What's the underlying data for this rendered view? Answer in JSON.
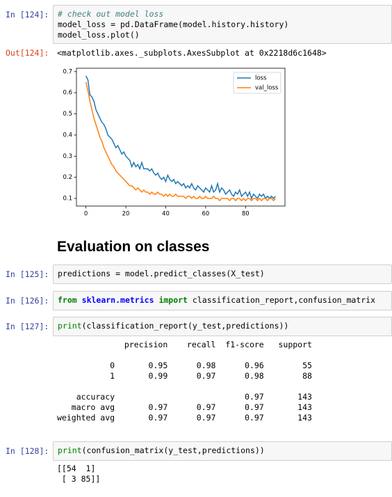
{
  "cells": [
    {
      "prompt": "In [124]:",
      "input": [
        [
          "# check out model loss"
        ],
        [
          "model_loss = pd.DataFrame(model.history.history)"
        ],
        [
          "model_loss.plot()"
        ]
      ],
      "out_prompt": "Out[124]:",
      "output": [
        "<matplotlib.axes._subplots.AxesSubplot at 0x2218d6c1648>"
      ]
    },
    {
      "prompt": "In [125]:",
      "input": [
        [
          "predictions = model.predict_classes(X_test)"
        ]
      ]
    },
    {
      "prompt": "In [126]:",
      "input": [
        [
          "from",
          "sklearn.metrics",
          "import",
          "classification_report,confusion_matrix"
        ]
      ]
    },
    {
      "prompt": "In [127]:",
      "input": [
        [
          "print",
          "(classification_report(y_test,predictions))"
        ]
      ],
      "output": [
        "              precision    recall  f1-score   support",
        "           0       0.95      0.98      0.96        55",
        "           1       0.99      0.97      0.98        88",
        "    accuracy                           0.97       143",
        "   macro avg       0.97      0.97      0.97       143",
        "weighted avg       0.97      0.97      0.97       143"
      ]
    },
    {
      "prompt": "In [128]:",
      "input": [
        [
          "print",
          "(confusion_matrix(y_test,predictions))"
        ]
      ],
      "output": [
        "[[54  1]",
        " [ 3 85]]"
      ]
    }
  ],
  "heading": "Evaluation on classes",
  "chart_data": {
    "type": "line",
    "x": [
      0,
      1,
      2,
      3,
      4,
      5,
      6,
      7,
      8,
      9,
      10,
      11,
      12,
      13,
      14,
      15,
      16,
      17,
      18,
      19,
      20,
      21,
      22,
      23,
      24,
      25,
      26,
      27,
      28,
      29,
      30,
      31,
      32,
      33,
      34,
      35,
      36,
      37,
      38,
      39,
      40,
      41,
      42,
      43,
      44,
      45,
      46,
      47,
      48,
      49,
      50,
      51,
      52,
      53,
      54,
      55,
      56,
      57,
      58,
      59,
      60,
      61,
      62,
      63,
      64,
      65,
      66,
      67,
      68,
      69,
      70,
      71,
      72,
      73,
      74,
      75,
      76,
      77,
      78,
      79,
      80,
      81,
      82,
      83,
      84,
      85,
      86,
      87,
      88,
      89,
      90,
      91,
      92,
      93,
      94,
      95
    ],
    "series": [
      {
        "name": "loss",
        "color": "#1f77b4",
        "values": [
          0.68,
          0.66,
          0.59,
          0.58,
          0.56,
          0.52,
          0.5,
          0.48,
          0.46,
          0.45,
          0.43,
          0.4,
          0.39,
          0.38,
          0.36,
          0.34,
          0.35,
          0.33,
          0.31,
          0.32,
          0.3,
          0.29,
          0.28,
          0.25,
          0.27,
          0.25,
          0.26,
          0.24,
          0.27,
          0.24,
          0.24,
          0.24,
          0.23,
          0.24,
          0.22,
          0.21,
          0.22,
          0.2,
          0.19,
          0.2,
          0.18,
          0.21,
          0.19,
          0.18,
          0.19,
          0.17,
          0.18,
          0.17,
          0.16,
          0.17,
          0.15,
          0.16,
          0.15,
          0.17,
          0.15,
          0.14,
          0.16,
          0.15,
          0.14,
          0.13,
          0.15,
          0.14,
          0.13,
          0.16,
          0.13,
          0.14,
          0.17,
          0.13,
          0.15,
          0.14,
          0.12,
          0.13,
          0.14,
          0.12,
          0.11,
          0.13,
          0.12,
          0.14,
          0.11,
          0.12,
          0.13,
          0.11,
          0.13,
          0.1,
          0.12,
          0.11,
          0.1,
          0.12,
          0.11,
          0.12,
          0.1,
          0.11,
          0.1,
          0.11,
          0.1,
          0.11
        ]
      },
      {
        "name": "val_loss",
        "color": "#ff7f0e",
        "values": [
          0.65,
          0.61,
          0.56,
          0.52,
          0.48,
          0.45,
          0.42,
          0.39,
          0.37,
          0.34,
          0.32,
          0.3,
          0.28,
          0.26,
          0.25,
          0.23,
          0.22,
          0.21,
          0.2,
          0.19,
          0.18,
          0.17,
          0.16,
          0.16,
          0.15,
          0.14,
          0.15,
          0.14,
          0.13,
          0.14,
          0.13,
          0.13,
          0.12,
          0.13,
          0.12,
          0.12,
          0.13,
          0.12,
          0.12,
          0.11,
          0.12,
          0.11,
          0.12,
          0.11,
          0.11,
          0.12,
          0.11,
          0.11,
          0.11,
          0.11,
          0.1,
          0.11,
          0.11,
          0.1,
          0.11,
          0.1,
          0.1,
          0.11,
          0.1,
          0.1,
          0.11,
          0.1,
          0.1,
          0.1,
          0.11,
          0.1,
          0.1,
          0.09,
          0.1,
          0.1,
          0.1,
          0.1,
          0.09,
          0.1,
          0.1,
          0.09,
          0.1,
          0.1,
          0.09,
          0.1,
          0.09,
          0.1,
          0.1,
          0.09,
          0.1,
          0.1,
          0.09,
          0.1,
          0.09,
          0.1,
          0.1,
          0.09,
          0.1,
          0.1,
          0.09,
          0.1
        ]
      }
    ],
    "xlim": [
      -4.75,
      99.75
    ],
    "ylim": [
      0.064,
      0.716
    ],
    "xticks": [
      0,
      20,
      40,
      60,
      80
    ],
    "yticks": [
      0.1,
      0.2,
      0.3,
      0.4,
      0.5,
      0.6,
      0.7
    ],
    "legend": "upper right"
  }
}
